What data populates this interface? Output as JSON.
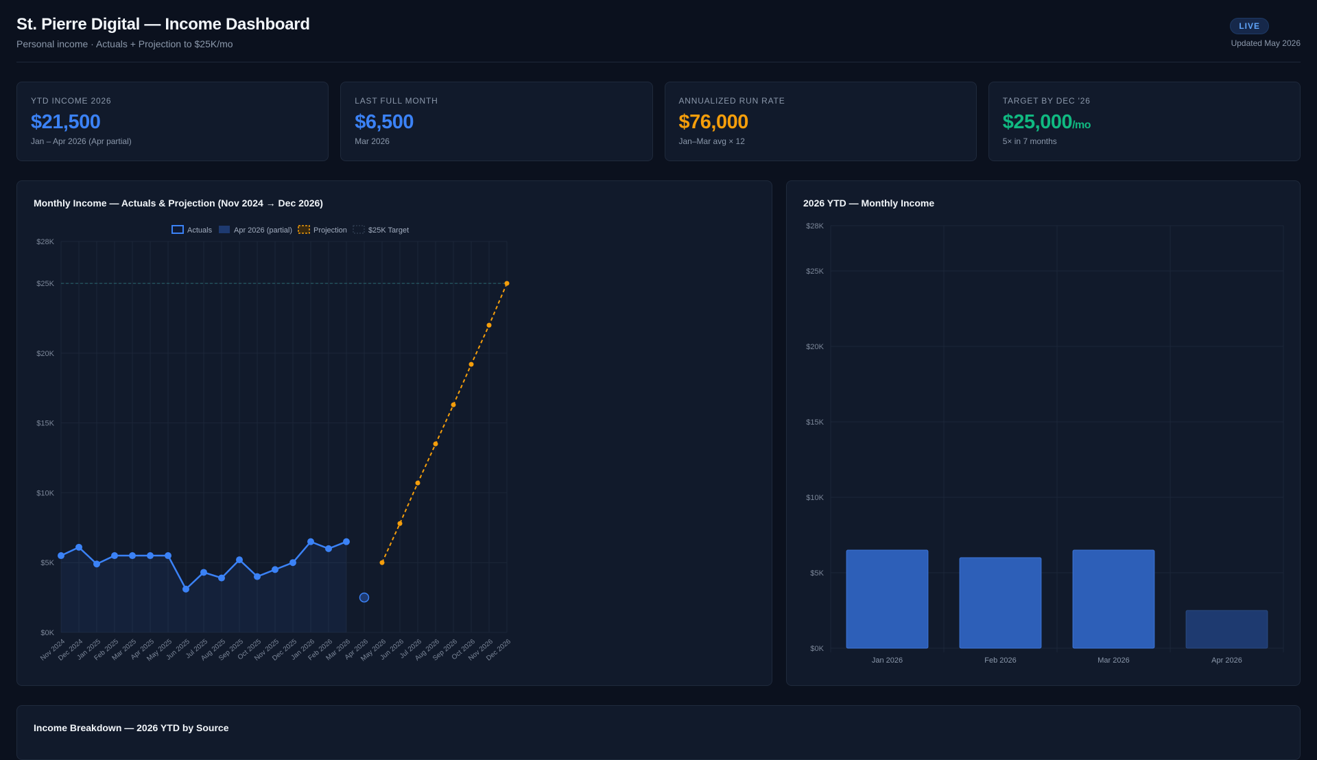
{
  "header": {
    "title": "St. Pierre Digital — Income Dashboard",
    "subtitle": "Personal income · Actuals + Projection to $25K/mo",
    "badge": "LIVE",
    "updated": "Updated May 2026"
  },
  "kpis": [
    {
      "label": "YTD Income 2026",
      "value": "$21,500",
      "unit": "",
      "sub": "Jan – Apr 2026 (Apr partial)",
      "color": "#3b82f6"
    },
    {
      "label": "Last Full Month",
      "value": "$6,500",
      "unit": "",
      "sub": "Mar 2026",
      "color": "#3b82f6"
    },
    {
      "label": "Annualized Run Rate",
      "value": "$76,000",
      "unit": "",
      "sub": "Jan–Mar avg × 12",
      "color": "#f59e0b"
    },
    {
      "label": "Target by Dec '26",
      "value": "$25,000",
      "unit": "/mo",
      "sub": "5× in 7 months",
      "color": "#10b981"
    }
  ],
  "panels": {
    "line_title": "Monthly Income — Actuals & Projection (Nov 2024 → Dec 2026)",
    "bar_title": "2026 YTD — Monthly Income",
    "breakdown_title": "Income Breakdown — 2026 YTD by Source"
  },
  "colors": {
    "actual": "#3b82f6",
    "partial": "#1e3a70",
    "projection": "#f59e0b",
    "target": "#2a6a72",
    "bar": "#2d5fb8"
  },
  "chart_data": [
    {
      "type": "line",
      "categories": [
        "Nov 2024",
        "Dec 2024",
        "Jan 2025",
        "Feb 2025",
        "Mar 2025",
        "Apr 2025",
        "May 2025",
        "Jun 2025",
        "Jul 2025",
        "Aug 2025",
        "Sep 2025",
        "Oct 2025",
        "Nov 2025",
        "Dec 2025",
        "Jan 2026",
        "Feb 2026",
        "Mar 2026",
        "Apr 2026",
        "May 2026",
        "Jun 2026",
        "Jul 2026",
        "Aug 2026",
        "Sep 2026",
        "Oct 2026",
        "Nov 2026",
        "Dec 2026"
      ],
      "series": [
        {
          "name": "Actuals",
          "values": [
            5500,
            6100,
            4900,
            5500,
            5500,
            5500,
            5500,
            3100,
            4300,
            3900,
            5200,
            4000,
            4500,
            5000,
            6500,
            6000,
            6500,
            null,
            null,
            null,
            null,
            null,
            null,
            null,
            null,
            null
          ]
        },
        {
          "name": "Apr 2026 (partial)",
          "values": [
            null,
            null,
            null,
            null,
            null,
            null,
            null,
            null,
            null,
            null,
            null,
            null,
            null,
            null,
            null,
            null,
            null,
            2500,
            null,
            null,
            null,
            null,
            null,
            null,
            null,
            null
          ]
        },
        {
          "name": "Projection",
          "values": [
            null,
            null,
            null,
            null,
            null,
            null,
            null,
            null,
            null,
            null,
            null,
            null,
            null,
            null,
            null,
            null,
            null,
            null,
            5000,
            7800,
            10700,
            13500,
            16300,
            19200,
            22000,
            25000
          ]
        },
        {
          "name": "$25K Target",
          "values": [
            25000,
            25000,
            25000,
            25000,
            25000,
            25000,
            25000,
            25000,
            25000,
            25000,
            25000,
            25000,
            25000,
            25000,
            25000,
            25000,
            25000,
            25000,
            25000,
            25000,
            25000,
            25000,
            25000,
            25000,
            25000,
            25000
          ]
        }
      ],
      "yticks": [
        "$0K",
        "$5K",
        "$10K",
        "$15K",
        "$20K",
        "$25K",
        "$28K"
      ],
      "ytick_values": [
        0,
        5000,
        10000,
        15000,
        20000,
        25000,
        28000
      ],
      "ylim": [
        0,
        28000
      ],
      "legend": "top-center",
      "grid": true
    },
    {
      "type": "bar",
      "categories": [
        "Jan 2026",
        "Feb 2026",
        "Mar 2026",
        "Apr 2026"
      ],
      "values": [
        6500,
        6000,
        6500,
        2500
      ],
      "partial": [
        false,
        false,
        false,
        true
      ],
      "yticks": [
        "$0K",
        "$5K",
        "$10K",
        "$15K",
        "$20K",
        "$25K",
        "$28K"
      ],
      "ytick_values": [
        0,
        5000,
        10000,
        15000,
        20000,
        25000,
        28000
      ],
      "ylim": [
        0,
        28000
      ],
      "grid": true
    }
  ]
}
